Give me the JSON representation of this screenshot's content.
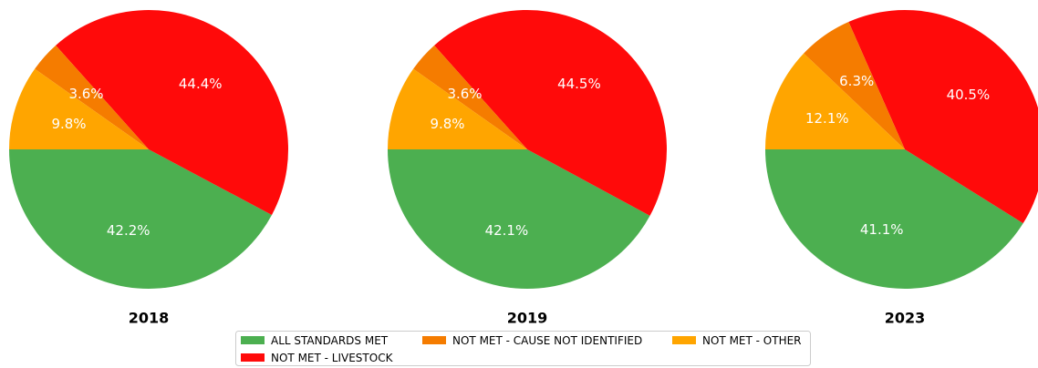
{
  "chart_data": {
    "type": "pie",
    "legend_position": "bottom-center",
    "categories": [
      "ALL STANDARDS MET",
      "NOT MET - CAUSE NOT IDENTIFIED",
      "NOT MET - OTHER",
      "NOT MET - LIVESTOCK"
    ],
    "colors": {
      "ALL STANDARDS MET": "#4caf50",
      "NOT MET - CAUSE NOT IDENTIFIED": "#f57c00",
      "NOT MET - OTHER": "#ffa500",
      "NOT MET - LIVESTOCK": "#ff0a0a"
    },
    "pies": [
      {
        "title": "2018",
        "values": {
          "ALL STANDARDS MET": 42.2,
          "NOT MET - CAUSE NOT IDENTIFIED": 3.6,
          "NOT MET - OTHER": 9.8,
          "NOT MET - LIVESTOCK": 44.4
        },
        "labels": {
          "ALL STANDARDS MET": "42.2%",
          "NOT MET - CAUSE NOT IDENTIFIED": "3.6%",
          "NOT MET - OTHER": "9.8%",
          "NOT MET - LIVESTOCK": "44.4%"
        }
      },
      {
        "title": "2019",
        "values": {
          "ALL STANDARDS MET": 42.1,
          "NOT MET - CAUSE NOT IDENTIFIED": 3.6,
          "NOT MET - OTHER": 9.8,
          "NOT MET - LIVESTOCK": 44.5
        },
        "labels": {
          "ALL STANDARDS MET": "42.1%",
          "NOT MET - CAUSE NOT IDENTIFIED": "3.6%",
          "NOT MET - OTHER": "9.8%",
          "NOT MET - LIVESTOCK": "44.5%"
        }
      },
      {
        "title": "2023",
        "values": {
          "ALL STANDARDS MET": 41.1,
          "NOT MET - CAUSE NOT IDENTIFIED": 6.3,
          "NOT MET - OTHER": 12.1,
          "NOT MET - LIVESTOCK": 40.5
        },
        "labels": {
          "ALL STANDARDS MET": "41.1%",
          "NOT MET - CAUSE NOT IDENTIFIED": "6.3%",
          "NOT MET - OTHER": "12.1%",
          "NOT MET - LIVESTOCK": "40.5%"
        }
      }
    ]
  }
}
